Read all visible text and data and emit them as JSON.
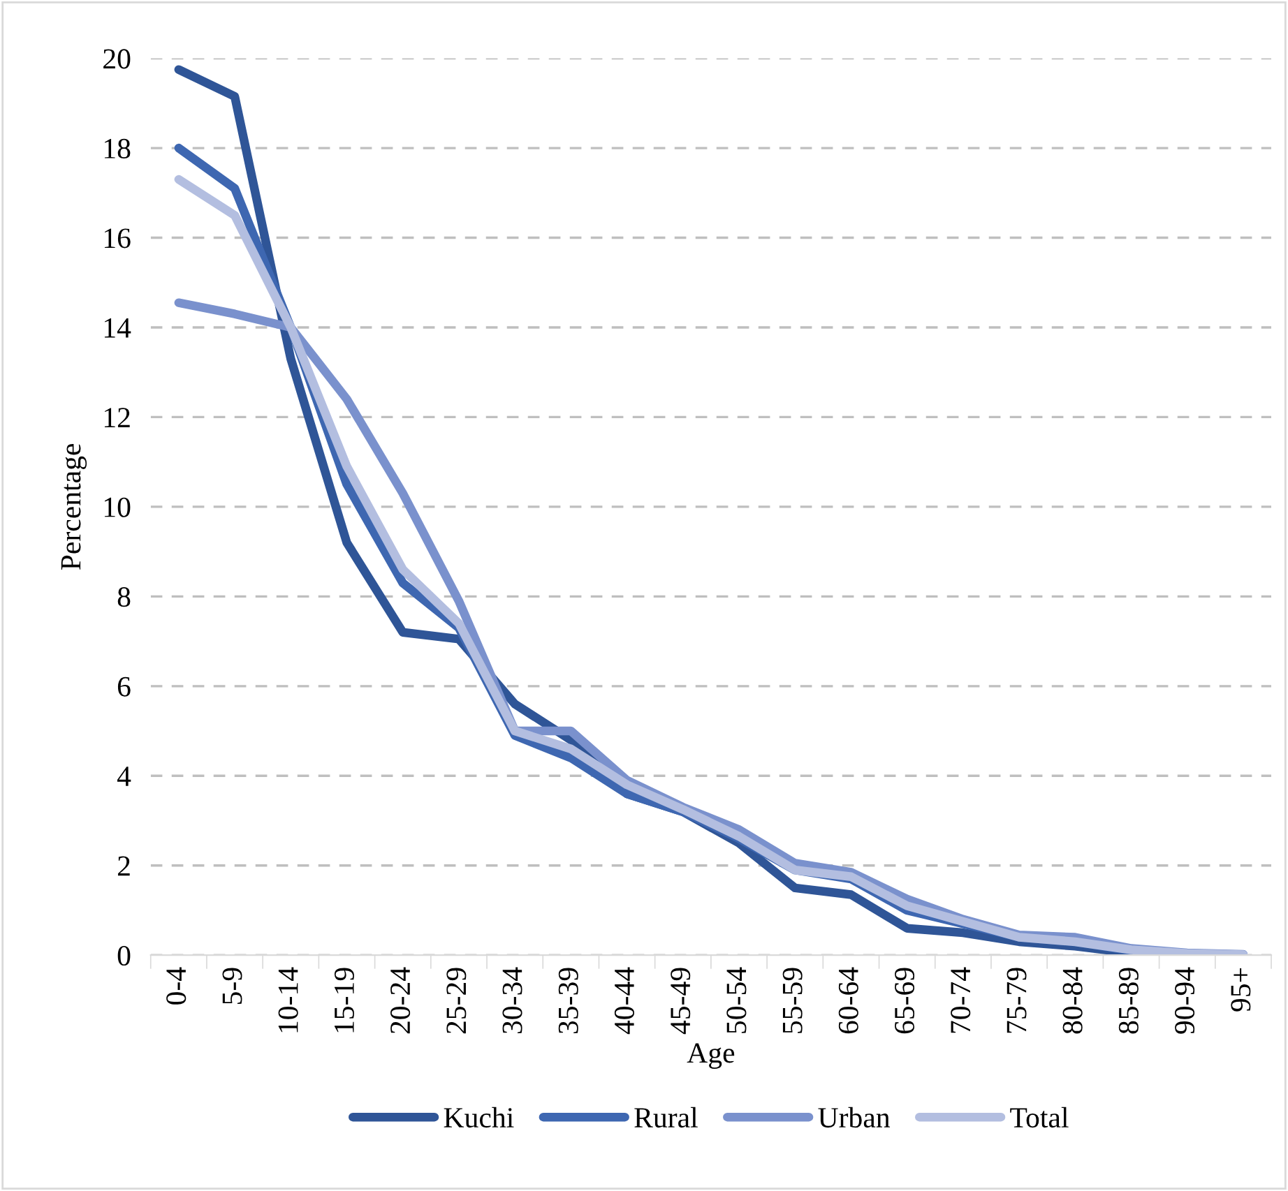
{
  "chart_data": {
    "type": "line",
    "xlabel": "Age",
    "ylabel": "Percentage",
    "categories": [
      "0-4",
      "5-9",
      "10-14",
      "15-19",
      "20-24",
      "25-29",
      "30-34",
      "35-39",
      "40-44",
      "45-49",
      "50-54",
      "55-59",
      "60-64",
      "65-69",
      "70-74",
      "75-79",
      "80-84",
      "85-89",
      "90-94",
      "95+"
    ],
    "series": [
      {
        "name": "Kuchi",
        "color": "#2f5597",
        "values": [
          19.75,
          19.15,
          13.3,
          9.2,
          7.2,
          7.05,
          5.6,
          4.8,
          3.6,
          3.2,
          2.5,
          1.5,
          1.35,
          0.6,
          0.5,
          0.3,
          0.2,
          0.05,
          0.02,
          0.01
        ]
      },
      {
        "name": "Rural",
        "color": "#3e67b1",
        "values": [
          18.0,
          17.1,
          14.0,
          10.5,
          8.3,
          7.3,
          4.9,
          4.4,
          3.6,
          3.2,
          2.6,
          1.9,
          1.7,
          1.0,
          0.7,
          0.4,
          0.3,
          0.1,
          0.03,
          0.01
        ]
      },
      {
        "name": "Urban",
        "color": "#7a91cd",
        "values": [
          14.55,
          14.3,
          14.0,
          12.4,
          10.3,
          7.9,
          5.0,
          5.0,
          3.9,
          3.3,
          2.8,
          2.05,
          1.85,
          1.25,
          0.8,
          0.45,
          0.4,
          0.15,
          0.05,
          0.02
        ]
      },
      {
        "name": "Total",
        "color": "#b3bee0",
        "values": [
          17.3,
          16.5,
          14.0,
          10.9,
          8.6,
          7.4,
          5.0,
          4.6,
          3.8,
          3.25,
          2.65,
          1.9,
          1.75,
          1.1,
          0.75,
          0.4,
          0.3,
          0.12,
          0.04,
          0.01
        ]
      }
    ],
    "ylim": [
      0,
      20
    ],
    "yticks": [
      0,
      2,
      4,
      6,
      8,
      10,
      12,
      14,
      16,
      18,
      20
    ],
    "grid": "y",
    "legend": "bottom",
    "marker": "none",
    "line_style": "solid"
  }
}
